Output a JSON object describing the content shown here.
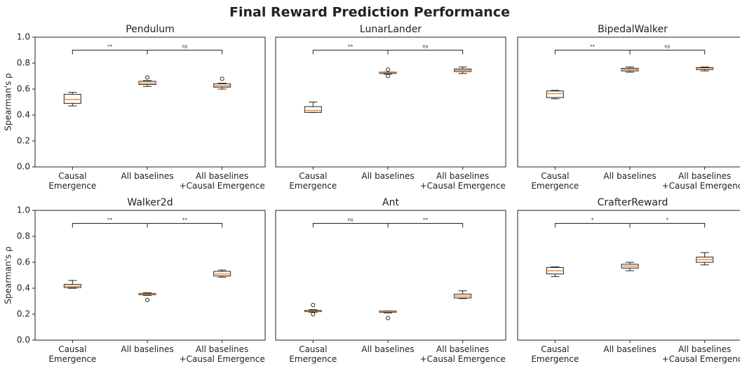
{
  "title": "Final Reward Prediction Performance",
  "chart_data": [
    {
      "type": "box",
      "title": "Pendulum",
      "ylabel": "Spearman's ρ",
      "categories": [
        "Causal\nEmergence",
        "All baselines",
        "All baselines\n+Causal Emergence"
      ],
      "ylim": [
        0,
        1
      ],
      "yticks": [
        {
          "value": 0,
          "label": "0.0"
        },
        {
          "value": 0.2,
          "label": "0.2"
        },
        {
          "value": 0.4,
          "label": "0.4"
        },
        {
          "value": 0.6,
          "label": "0.6"
        },
        {
          "value": 0.8,
          "label": "0.8"
        },
        {
          "value": 1,
          "label": "1.0"
        }
      ],
      "significance": [
        "**",
        "ns"
      ],
      "boxes": [
        {
          "min": 0.47,
          "q1": 0.49,
          "median": 0.52,
          "q3": 0.56,
          "max": 0.575,
          "outliers": []
        },
        {
          "min": 0.62,
          "q1": 0.635,
          "median": 0.645,
          "q3": 0.66,
          "max": 0.665,
          "outliers": [
            0.69
          ]
        },
        {
          "min": 0.6,
          "q1": 0.615,
          "median": 0.625,
          "q3": 0.64,
          "max": 0.645,
          "outliers": [
            0.68
          ]
        }
      ]
    },
    {
      "type": "box",
      "title": "LunarLander",
      "categories": [
        "Causal\nEmergence",
        "All baselines",
        "All baselines\n+Causal Emergence"
      ],
      "ylim": [
        0,
        1
      ],
      "significance": [
        "**",
        "ns"
      ],
      "boxes": [
        {
          "min": 0.42,
          "q1": 0.42,
          "median": 0.435,
          "q3": 0.465,
          "max": 0.5,
          "outliers": []
        },
        {
          "min": 0.715,
          "q1": 0.72,
          "median": 0.725,
          "q3": 0.73,
          "max": 0.73,
          "outliers": [
            0.7,
            0.75
          ]
        },
        {
          "min": 0.72,
          "q1": 0.735,
          "median": 0.745,
          "q3": 0.755,
          "max": 0.77,
          "outliers": []
        }
      ]
    },
    {
      "type": "box",
      "title": "BipedalWalker",
      "categories": [
        "Causal\nEmergence",
        "All baselines",
        "All baselines\n+Causal Emergence"
      ],
      "ylim": [
        0,
        1
      ],
      "significance": [
        "**",
        "ns"
      ],
      "boxes": [
        {
          "min": 0.525,
          "q1": 0.535,
          "median": 0.565,
          "q3": 0.585,
          "max": 0.59,
          "outliers": []
        },
        {
          "min": 0.73,
          "q1": 0.74,
          "median": 0.75,
          "q3": 0.76,
          "max": 0.77,
          "outliers": []
        },
        {
          "min": 0.74,
          "q1": 0.75,
          "median": 0.755,
          "q3": 0.765,
          "max": 0.77,
          "outliers": []
        }
      ]
    },
    {
      "type": "box",
      "title": "Walker2d",
      "ylabel": "Spearman's ρ",
      "categories": [
        "Causal\nEmergence",
        "All baselines",
        "All baselines\n+Causal Emergence"
      ],
      "ylim": [
        0,
        1
      ],
      "yticks": [
        {
          "value": 0,
          "label": "0.0"
        },
        {
          "value": 0.2,
          "label": "0.2"
        },
        {
          "value": 0.4,
          "label": "0.4"
        },
        {
          "value": 0.6,
          "label": "0.6"
        },
        {
          "value": 0.8,
          "label": "0.8"
        },
        {
          "value": 1,
          "label": "1.0"
        }
      ],
      "significance": [
        "**",
        "**"
      ],
      "boxes": [
        {
          "min": 0.4,
          "q1": 0.405,
          "median": 0.415,
          "q3": 0.43,
          "max": 0.46,
          "outliers": []
        },
        {
          "min": 0.345,
          "q1": 0.35,
          "median": 0.355,
          "q3": 0.36,
          "max": 0.365,
          "outliers": [
            0.31
          ]
        },
        {
          "min": 0.485,
          "q1": 0.495,
          "median": 0.51,
          "q3": 0.53,
          "max": 0.54,
          "outliers": []
        }
      ]
    },
    {
      "type": "box",
      "title": "Ant",
      "categories": [
        "Causal\nEmergence",
        "All baselines",
        "All baselines\n+Causal Emergence"
      ],
      "ylim": [
        0,
        1
      ],
      "significance": [
        "ns",
        "**"
      ],
      "boxes": [
        {
          "min": 0.215,
          "q1": 0.22,
          "median": 0.225,
          "q3": 0.23,
          "max": 0.235,
          "outliers": [
            0.27,
            0.2
          ]
        },
        {
          "min": 0.21,
          "q1": 0.215,
          "median": 0.22,
          "q3": 0.225,
          "max": 0.225,
          "outliers": [
            0.17
          ]
        },
        {
          "min": 0.32,
          "q1": 0.325,
          "median": 0.34,
          "q3": 0.355,
          "max": 0.38,
          "outliers": []
        }
      ]
    },
    {
      "type": "box",
      "title": "CrafterReward",
      "categories": [
        "Causal\nEmergence",
        "All baselines",
        "All baselines\n+Causal Emergence"
      ],
      "ylim": [
        0,
        1
      ],
      "significance": [
        "*",
        "*"
      ],
      "boxes": [
        {
          "min": 0.49,
          "q1": 0.51,
          "median": 0.535,
          "q3": 0.56,
          "max": 0.565,
          "outliers": []
        },
        {
          "min": 0.535,
          "q1": 0.555,
          "median": 0.57,
          "q3": 0.585,
          "max": 0.6,
          "outliers": []
        },
        {
          "min": 0.58,
          "q1": 0.6,
          "median": 0.62,
          "q3": 0.64,
          "max": 0.675,
          "outliers": []
        }
      ]
    }
  ]
}
